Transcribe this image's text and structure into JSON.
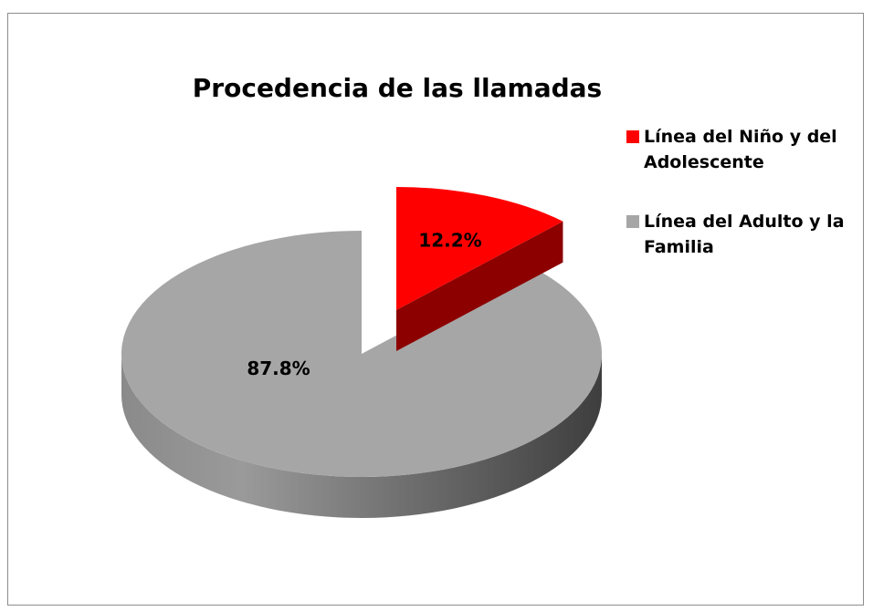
{
  "chart_data": {
    "type": "pie",
    "title": "Procedencia de las llamadas",
    "categories": [
      "Línea del Niño y del Adolescente",
      "Línea del Adulto y la Familia"
    ],
    "values": [
      12.2,
      87.8
    ],
    "value_labels": [
      "12.2%",
      "87.8%"
    ],
    "colors": [
      "#ff0000",
      "#a6a6a6"
    ],
    "legend": "right"
  }
}
